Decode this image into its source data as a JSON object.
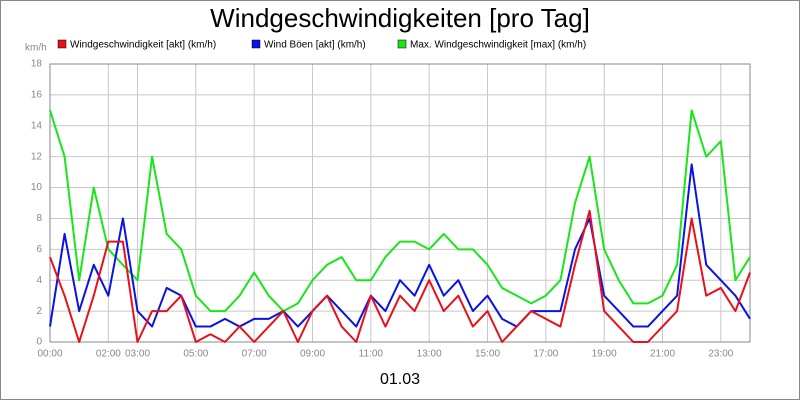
{
  "chart_data": {
    "type": "line",
    "title": "Windgeschwindigkeiten [pro Tag]",
    "y_unit": "km/h",
    "x_label": "01.03",
    "x": [
      0,
      0.5,
      1,
      1.5,
      2,
      2.5,
      3,
      3.5,
      4,
      4.5,
      5,
      5.5,
      6,
      6.5,
      7,
      7.5,
      8,
      8.5,
      9,
      9.5,
      10,
      10.5,
      11,
      11.5,
      12,
      12.5,
      13,
      13.5,
      14,
      14.5,
      15,
      15.5,
      16,
      16.5,
      17,
      17.5,
      18,
      18.5,
      19,
      19.5,
      20,
      20.5,
      21,
      21.5,
      22,
      22.5,
      23,
      23.5,
      24
    ],
    "series": [
      {
        "name": "Windgeschwindigkeit [akt] (km/h)",
        "color": "#e8101a",
        "values": [
          5.5,
          3,
          0,
          3,
          6.5,
          6.5,
          0,
          2,
          2,
          3,
          0,
          0.5,
          0,
          1,
          0,
          1,
          2,
          0,
          2,
          3,
          1,
          0,
          3,
          1,
          3,
          2,
          4,
          2,
          3,
          1,
          2,
          0,
          1,
          2,
          1.5,
          1,
          5,
          8.5,
          2,
          1,
          0,
          0,
          1,
          2,
          8,
          3,
          3.5,
          2,
          4.5
        ]
      },
      {
        "name": "Wind Böen [akt] (km/h)",
        "color": "#0a14e0",
        "values": [
          1,
          7,
          2,
          5,
          3,
          8,
          2,
          1,
          3.5,
          3,
          1,
          1,
          1.5,
          1,
          1.5,
          1.5,
          2,
          1,
          2,
          3,
          2,
          1,
          3,
          2,
          4,
          3,
          5,
          3,
          4,
          2,
          3,
          1.5,
          1,
          2,
          2,
          2,
          6,
          8,
          3,
          2,
          1,
          1,
          2,
          3,
          11.5,
          5,
          4,
          3,
          1.5
        ]
      },
      {
        "name": "Max. Windgeschwindigkeit [max] (km/h)",
        "color": "#19e619",
        "values": [
          15,
          12,
          4,
          10,
          6,
          5,
          4,
          12,
          7,
          6,
          3,
          2,
          2,
          3,
          4.5,
          3,
          2,
          2.5,
          4,
          5,
          5.5,
          4,
          4,
          5.5,
          6.5,
          6.5,
          6,
          7,
          6,
          6,
          5,
          3.5,
          3,
          2.5,
          3,
          4,
          9,
          12,
          6,
          4,
          2.5,
          2.5,
          3,
          5,
          15,
          12,
          13,
          4,
          5.5
        ]
      }
    ],
    "xlim": [
      0,
      24
    ],
    "xticks": [
      {
        "value": 0,
        "label": "00:00"
      },
      {
        "value": 2,
        "label": "02:00"
      },
      {
        "value": 3,
        "label": "03:00"
      },
      {
        "value": 5,
        "label": "05:00"
      },
      {
        "value": 7,
        "label": "07:00"
      },
      {
        "value": 9,
        "label": "09:00"
      },
      {
        "value": 11,
        "label": "11:00"
      },
      {
        "value": 13,
        "label": "13:00"
      },
      {
        "value": 15,
        "label": "15:00"
      },
      {
        "value": 17,
        "label": "17:00"
      },
      {
        "value": 19,
        "label": "19:00"
      },
      {
        "value": 21,
        "label": "21:00"
      },
      {
        "value": 23,
        "label": "23:00"
      }
    ],
    "ylim": [
      0,
      18
    ],
    "yticks": [
      0,
      2,
      4,
      6,
      8,
      10,
      12,
      14,
      16,
      18
    ],
    "grid": true
  }
}
